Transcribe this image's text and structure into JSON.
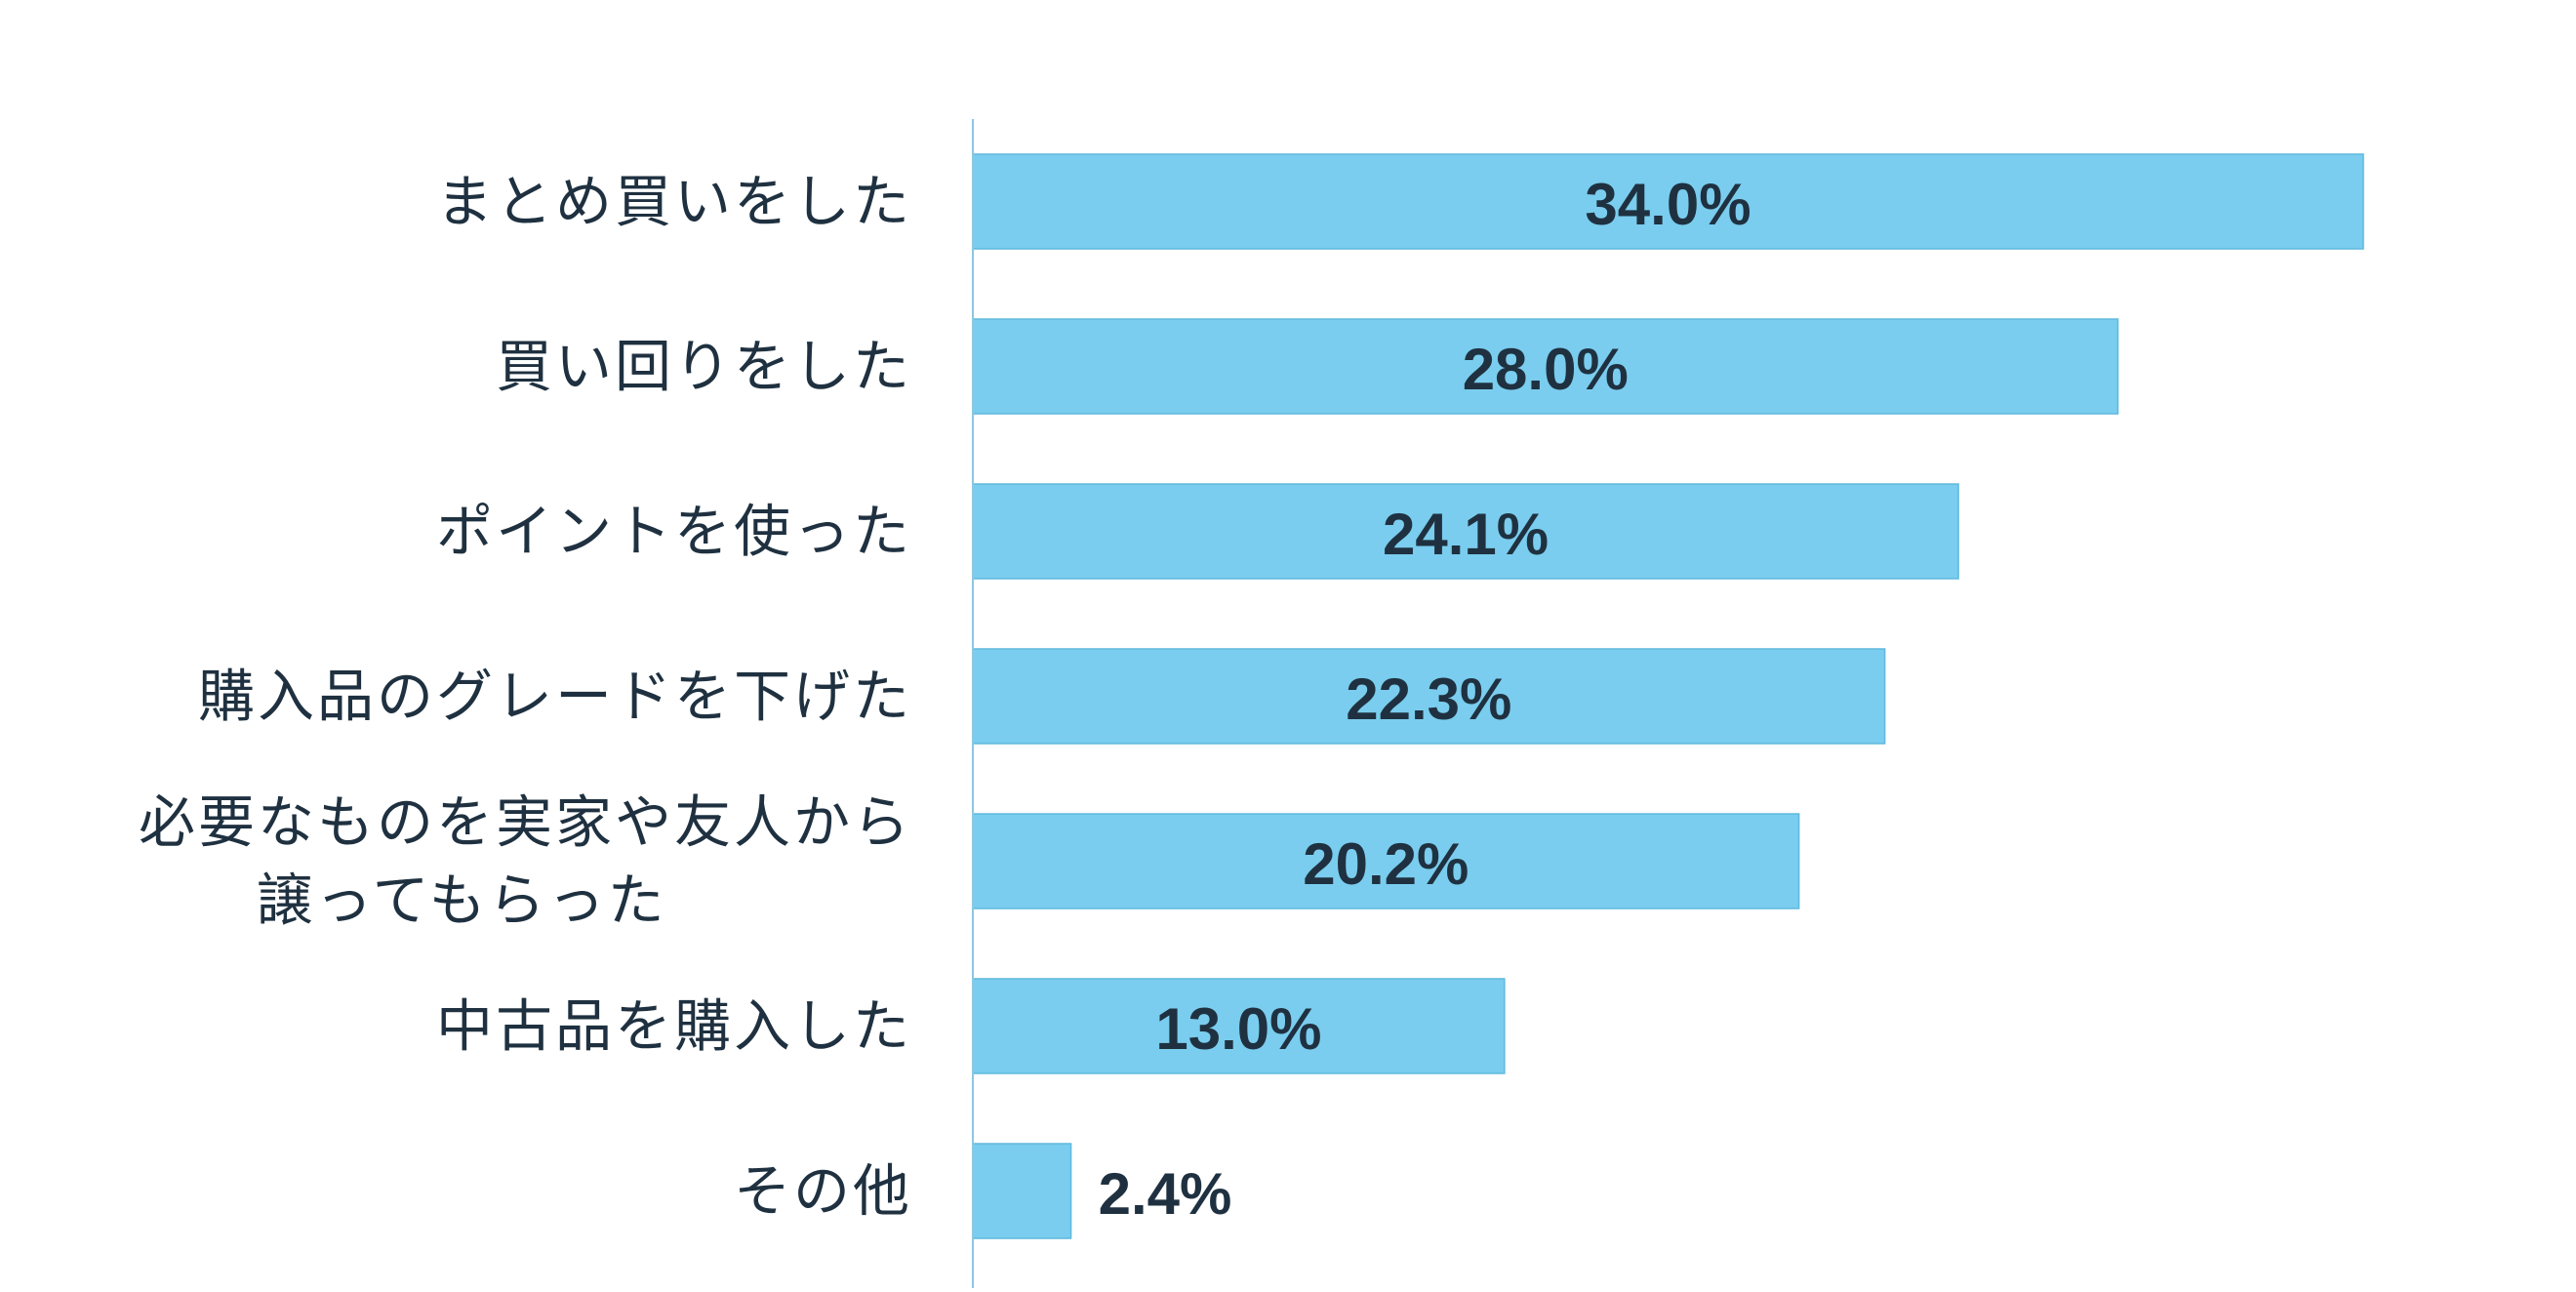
{
  "chart_data": {
    "type": "bar",
    "orientation": "horizontal",
    "categories": [
      [
        "まとめ買いをした"
      ],
      [
        "買い回りをした"
      ],
      [
        "ポイントを使った"
      ],
      [
        "購入品のグレードを下げた"
      ],
      [
        "必要なものを実家や友人から",
        "譲ってもらった"
      ],
      [
        "中古品を購入した"
      ],
      [
        "その他"
      ]
    ],
    "values": [
      34.0,
      28.0,
      24.1,
      22.3,
      20.2,
      13.0,
      2.4
    ],
    "value_labels": [
      "34.0%",
      "28.0%",
      "24.1%",
      "22.3%",
      "20.2%",
      "13.0%",
      "2.4%"
    ],
    "unit": "%",
    "bar_color": "#7acdee",
    "bar_edge_color": "#5fb9de",
    "axis_color": "#8fc7df",
    "text_color": "#1f3140",
    "xlim": [
      0,
      34.0
    ],
    "grid": false,
    "legend": "none",
    "title": "",
    "xlabel": "",
    "ylabel": ""
  }
}
